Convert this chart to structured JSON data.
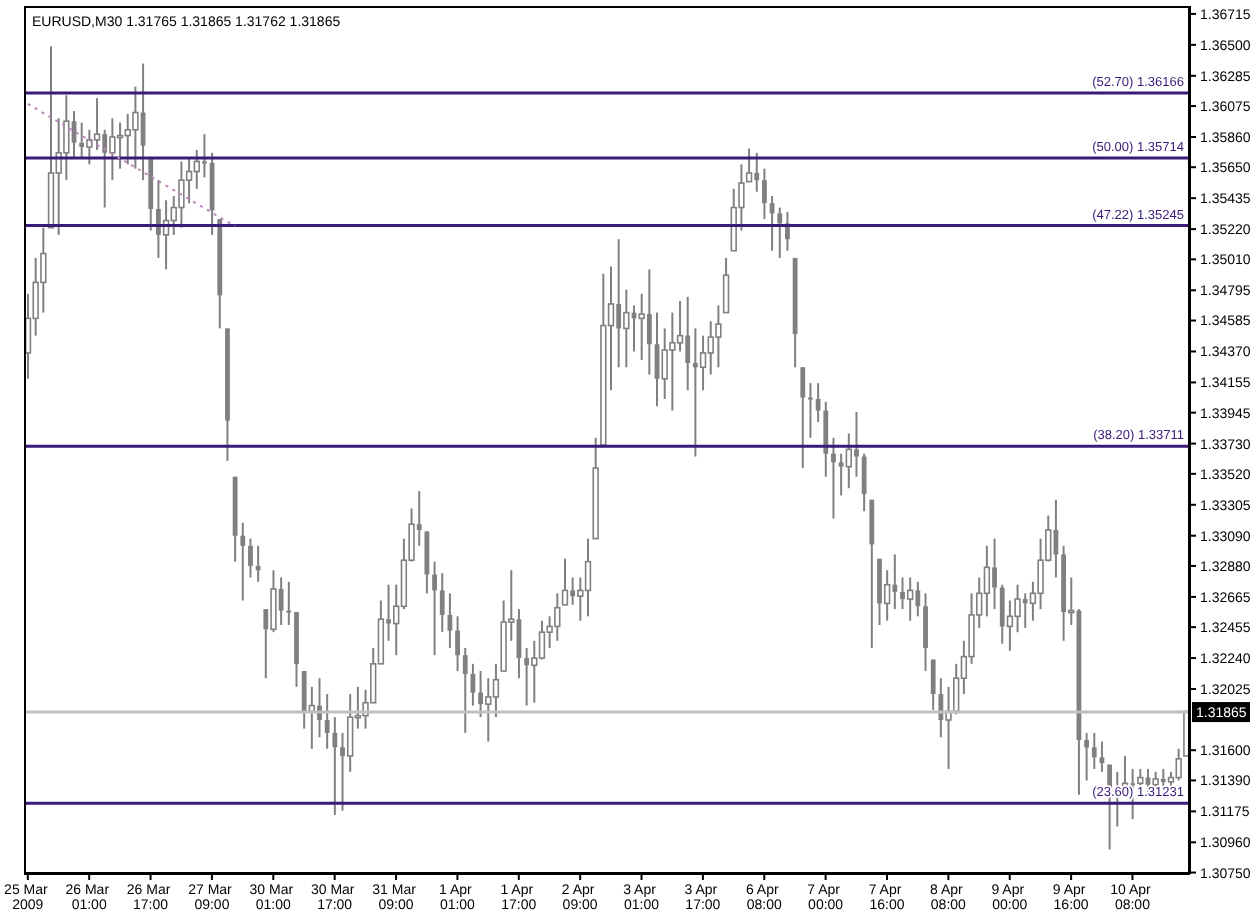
{
  "chart_data": {
    "type": "candlestick",
    "title": "EURUSD,M30 1.31765 1.31865 1.31762 1.31865",
    "categories": [
      "25 Mar 2009",
      null,
      null,
      null,
      null,
      null,
      null,
      null,
      "26 Mar 01:00",
      null,
      null,
      null,
      null,
      null,
      null,
      null,
      "26 Mar 17:00",
      null,
      null,
      null,
      null,
      null,
      null,
      null,
      "27 Mar 09:00",
      null,
      null,
      null,
      null,
      null,
      null,
      null,
      "30 Mar 01:00",
      null,
      null,
      null,
      null,
      null,
      null,
      null,
      "30 Mar 17:00",
      null,
      null,
      null,
      null,
      null,
      null,
      null,
      "31 Mar 09:00",
      null,
      null,
      null,
      null,
      null,
      null,
      null,
      "1 Apr 01:00",
      null,
      null,
      null,
      null,
      null,
      null,
      null,
      "1 Apr 17:00",
      null,
      null,
      null,
      null,
      null,
      null,
      null,
      "2 Apr 09:00",
      null,
      null,
      null,
      null,
      null,
      null,
      null,
      "3 Apr 01:00",
      null,
      null,
      null,
      null,
      null,
      null,
      null,
      "3 Apr 17:00",
      null,
      null,
      null,
      null,
      null,
      null,
      null,
      "6 Apr 08:00",
      null,
      null,
      null,
      null,
      null,
      null,
      null,
      "7 Apr 00:00",
      null,
      null,
      null,
      null,
      null,
      null,
      null,
      "7 Apr 16:00",
      null,
      null,
      null,
      null,
      null,
      null,
      null,
      "8 Apr 08:00",
      null,
      null,
      null,
      null,
      null,
      null,
      null,
      "9 Apr 00:00",
      null,
      null,
      null,
      null,
      null,
      null,
      null,
      "9 Apr 16:00",
      null,
      null,
      null,
      null,
      null,
      null,
      null,
      "10 Apr 08:00",
      null,
      null,
      null,
      null,
      null,
      null,
      null
    ],
    "color": "#808080",
    "ohlc": [
      [
        1.3436,
        1.3477,
        1.3418,
        1.346
      ],
      [
        1.346,
        1.3502,
        1.3448,
        1.3485
      ],
      [
        1.3485,
        1.3523,
        1.3464,
        1.3505
      ],
      [
        1.3523,
        1.3649,
        1.3523,
        1.3561
      ],
      [
        1.3561,
        1.3599,
        1.3518,
        1.3575
      ],
      [
        1.3575,
        1.3615,
        1.3556,
        1.3597
      ],
      [
        1.3597,
        1.3604,
        1.3572,
        1.3582
      ],
      [
        1.3582,
        1.3596,
        1.3572,
        1.3579
      ],
      [
        1.3579,
        1.3591,
        1.3567,
        1.3584
      ],
      [
        1.3584,
        1.3613,
        1.3577,
        1.3588
      ],
      [
        1.3588,
        1.3591,
        1.3537,
        1.3575
      ],
      [
        1.3575,
        1.3599,
        1.3556,
        1.3586
      ],
      [
        1.3586,
        1.3596,
        1.3564,
        1.3587
      ],
      [
        1.3587,
        1.3602,
        1.3567,
        1.3591
      ],
      [
        1.3591,
        1.3621,
        1.3564,
        1.3603
      ],
      [
        1.3603,
        1.3637,
        1.3556,
        1.358
      ],
      [
        1.3572,
        1.3572,
        1.3521,
        1.3536
      ],
      [
        1.3536,
        1.3556,
        1.3502,
        1.3518
      ],
      [
        1.3518,
        1.3542,
        1.3494,
        1.3528
      ],
      [
        1.3528,
        1.3545,
        1.3518,
        1.3537
      ],
      [
        1.3537,
        1.3569,
        1.3523,
        1.3556
      ],
      [
        1.3556,
        1.3572,
        1.354,
        1.3562
      ],
      [
        1.3562,
        1.3577,
        1.355,
        1.3569
      ],
      [
        1.3569,
        1.3588,
        1.3558,
        1.3568
      ],
      [
        1.3568,
        1.3575,
        1.3518,
        1.3535
      ],
      [
        1.3529,
        1.3529,
        1.3453,
        1.3476
      ],
      [
        1.3453,
        1.3453,
        1.3361,
        1.3389
      ],
      [
        1.335,
        1.335,
        1.3291,
        1.3309
      ],
      [
        1.3309,
        1.3318,
        1.3264,
        1.3302
      ],
      [
        1.3302,
        1.3307,
        1.328,
        1.3288
      ],
      [
        1.3288,
        1.3302,
        1.3277,
        1.3285
      ],
      [
        1.3258,
        1.3258,
        1.321,
        1.3244
      ],
      [
        1.3244,
        1.3285,
        1.3242,
        1.3272
      ],
      [
        1.3272,
        1.328,
        1.3247,
        1.3257
      ],
      [
        1.3257,
        1.3277,
        1.3247,
        1.3257
      ],
      [
        1.3256,
        1.3256,
        1.3204,
        1.322
      ],
      [
        1.3215,
        1.3215,
        1.3175,
        1.3187
      ],
      [
        1.3187,
        1.3204,
        1.3161,
        1.3191
      ],
      [
        1.3191,
        1.321,
        1.3169,
        1.3181
      ],
      [
        1.3181,
        1.3199,
        1.3161,
        1.3172
      ],
      [
        1.3172,
        1.3183,
        1.3115,
        1.3162
      ],
      [
        1.3162,
        1.3172,
        1.3118,
        1.3156
      ],
      [
        1.3156,
        1.3199,
        1.3145,
        1.3183
      ],
      [
        1.3183,
        1.3204,
        1.3175,
        1.3184
      ],
      [
        1.3184,
        1.3202,
        1.3175,
        1.3193
      ],
      [
        1.3193,
        1.3231,
        1.3193,
        1.322
      ],
      [
        1.322,
        1.3264,
        1.322,
        1.3251
      ],
      [
        1.3251,
        1.3275,
        1.3236,
        1.3248
      ],
      [
        1.3248,
        1.3275,
        1.3226,
        1.326
      ],
      [
        1.326,
        1.3307,
        1.3258,
        1.3292
      ],
      [
        1.3292,
        1.3328,
        1.3291,
        1.3317
      ],
      [
        1.3317,
        1.334,
        1.3302,
        1.3313
      ],
      [
        1.3312,
        1.3312,
        1.3269,
        1.3282
      ],
      [
        1.3282,
        1.3291,
        1.3226,
        1.3271
      ],
      [
        1.3271,
        1.3283,
        1.3242,
        1.3254
      ],
      [
        1.3254,
        1.3269,
        1.3231,
        1.3243
      ],
      [
        1.3243,
        1.3253,
        1.3215,
        1.3226
      ],
      [
        1.3226,
        1.3231,
        1.3172,
        1.3213
      ],
      [
        1.3213,
        1.322,
        1.3191,
        1.32
      ],
      [
        1.32,
        1.3215,
        1.3183,
        1.3192
      ],
      [
        1.3192,
        1.321,
        1.3166,
        1.3197
      ],
      [
        1.3197,
        1.322,
        1.3183,
        1.3209
      ],
      [
        1.3215,
        1.3264,
        1.3215,
        1.3249
      ],
      [
        1.3249,
        1.3285,
        1.3236,
        1.3251
      ],
      [
        1.3251,
        1.3258,
        1.321,
        1.3224
      ],
      [
        1.3224,
        1.3231,
        1.3191,
        1.3219
      ],
      [
        1.3219,
        1.3236,
        1.3193,
        1.3224
      ],
      [
        1.3224,
        1.325,
        1.3223,
        1.3242
      ],
      [
        1.3242,
        1.3253,
        1.3231,
        1.3246
      ],
      [
        1.3246,
        1.3269,
        1.3236,
        1.3259
      ],
      [
        1.3261,
        1.3293,
        1.3261,
        1.3271
      ],
      [
        1.3271,
        1.328,
        1.3261,
        1.3267
      ],
      [
        1.3267,
        1.328,
        1.325,
        1.3271
      ],
      [
        1.3271,
        1.3307,
        1.3253,
        1.3291
      ],
      [
        1.3307,
        1.3377,
        1.3307,
        1.3356
      ],
      [
        1.3372,
        1.3491,
        1.3372,
        1.3455
      ],
      [
        1.3455,
        1.3496,
        1.341,
        1.347
      ],
      [
        1.347,
        1.3515,
        1.3426,
        1.3453
      ],
      [
        1.3453,
        1.348,
        1.3426,
        1.3464
      ],
      [
        1.3464,
        1.3469,
        1.3437,
        1.346
      ],
      [
        1.346,
        1.3477,
        1.3431,
        1.3463
      ],
      [
        1.3463,
        1.3494,
        1.3421,
        1.3442
      ],
      [
        1.3442,
        1.3464,
        1.3399,
        1.3418
      ],
      [
        1.3418,
        1.3453,
        1.3404,
        1.3438
      ],
      [
        1.3438,
        1.3464,
        1.3396,
        1.3443
      ],
      [
        1.3443,
        1.3472,
        1.3437,
        1.3448
      ],
      [
        1.3448,
        1.3475,
        1.341,
        1.3429
      ],
      [
        1.3429,
        1.3453,
        1.3364,
        1.3426
      ],
      [
        1.3426,
        1.3448,
        1.341,
        1.3436
      ],
      [
        1.3436,
        1.3458,
        1.3421,
        1.3447
      ],
      [
        1.3447,
        1.3469,
        1.3426,
        1.3456
      ],
      [
        1.3464,
        1.3502,
        1.3464,
        1.349
      ],
      [
        1.3507,
        1.355,
        1.3507,
        1.3537
      ],
      [
        1.3537,
        1.3567,
        1.3521,
        1.3554
      ],
      [
        1.3555,
        1.3578,
        1.3555,
        1.3561
      ],
      [
        1.3561,
        1.3575,
        1.3548,
        1.3556
      ],
      [
        1.3556,
        1.3564,
        1.3529,
        1.354
      ],
      [
        1.354,
        1.3545,
        1.3507,
        1.3533
      ],
      [
        1.3533,
        1.3537,
        1.3502,
        1.3526
      ],
      [
        1.3526,
        1.3534,
        1.3507,
        1.3515
      ],
      [
        1.3502,
        1.3502,
        1.3426,
        1.3449
      ],
      [
        1.3426,
        1.3426,
        1.3356,
        1.3405
      ],
      [
        1.3405,
        1.3415,
        1.3377,
        1.3404
      ],
      [
        1.3404,
        1.3415,
        1.3388,
        1.3396
      ],
      [
        1.3396,
        1.3402,
        1.335,
        1.3366
      ],
      [
        1.3366,
        1.3377,
        1.3321,
        1.336
      ],
      [
        1.336,
        1.3366,
        1.3337,
        1.3357
      ],
      [
        1.3357,
        1.338,
        1.3342,
        1.3369
      ],
      [
        1.3369,
        1.3395,
        1.335,
        1.3364
      ],
      [
        1.3364,
        1.3366,
        1.3326,
        1.3338
      ],
      [
        1.3334,
        1.3334,
        1.3231,
        1.3303
      ],
      [
        1.3293,
        1.3293,
        1.3247,
        1.3262
      ],
      [
        1.3262,
        1.3285,
        1.325,
        1.3275
      ],
      [
        1.3275,
        1.3296,
        1.3258,
        1.327
      ],
      [
        1.327,
        1.328,
        1.3258,
        1.3265
      ],
      [
        1.3265,
        1.328,
        1.325,
        1.3271
      ],
      [
        1.3271,
        1.3277,
        1.3253,
        1.326
      ],
      [
        1.326,
        1.3269,
        1.3215,
        1.3231
      ],
      [
        1.3223,
        1.3223,
        1.3188,
        1.3199
      ],
      [
        1.3199,
        1.321,
        1.3169,
        1.3181
      ],
      [
        1.3181,
        1.3204,
        1.3147,
        1.3187
      ],
      [
        1.3187,
        1.322,
        1.3185,
        1.321
      ],
      [
        1.321,
        1.3236,
        1.3199,
        1.3225
      ],
      [
        1.3225,
        1.3269,
        1.322,
        1.3254
      ],
      [
        1.3254,
        1.328,
        1.3245,
        1.3269
      ],
      [
        1.3269,
        1.3302,
        1.3253,
        1.3287
      ],
      [
        1.3287,
        1.3307,
        1.3258,
        1.3273
      ],
      [
        1.3273,
        1.3275,
        1.3234,
        1.3246
      ],
      [
        1.3246,
        1.3264,
        1.3229,
        1.3253
      ],
      [
        1.3253,
        1.3275,
        1.3242,
        1.3265
      ],
      [
        1.3265,
        1.3269,
        1.3245,
        1.3262
      ],
      [
        1.3262,
        1.3277,
        1.325,
        1.3269
      ],
      [
        1.3269,
        1.3307,
        1.3258,
        1.3292
      ],
      [
        1.3292,
        1.3323,
        1.3291,
        1.3313
      ],
      [
        1.3313,
        1.3334,
        1.328,
        1.3296
      ],
      [
        1.3296,
        1.3302,
        1.3236,
        1.3256
      ],
      [
        1.3256,
        1.328,
        1.3247,
        1.3257
      ],
      [
        1.3257,
        1.3258,
        1.3129,
        1.3167
      ],
      [
        1.3167,
        1.3172,
        1.3139,
        1.3162
      ],
      [
        1.3162,
        1.3172,
        1.3147,
        1.3155
      ],
      [
        1.3155,
        1.3166,
        1.3145,
        1.3151
      ],
      [
        1.315,
        1.315,
        1.3091,
        1.3132
      ],
      [
        1.3132,
        1.3145,
        1.3107,
        1.3133
      ],
      [
        1.3133,
        1.3156,
        1.3129,
        1.3137
      ],
      [
        1.3137,
        1.3147,
        1.3112,
        1.3137
      ],
      [
        1.3137,
        1.3147,
        1.3129,
        1.3141
      ],
      [
        1.3141,
        1.3147,
        1.3131,
        1.3136
      ],
      [
        1.3136,
        1.3145,
        1.3131,
        1.314
      ],
      [
        1.314,
        1.3147,
        1.3134,
        1.3138
      ],
      [
        1.3138,
        1.3145,
        1.3134,
        1.3141
      ],
      [
        1.3141,
        1.3161,
        1.3139,
        1.3154
      ],
      [
        1.3156,
        1.3187,
        1.3156,
        1.3187
      ]
    ],
    "series": [
      {
        "type": "line",
        "color": "#b88ab8",
        "line_style": "dotted",
        "values": [
          1.3609,
          null,
          null,
          null,
          null,
          null,
          null,
          null,
          null,
          null,
          null,
          null,
          null,
          null,
          null,
          null,
          null,
          null,
          null,
          null,
          null,
          null,
          null,
          null,
          null,
          null,
          null,
          1.3524,
          null,
          null,
          null,
          null,
          null,
          null,
          null,
          null,
          null,
          null,
          null,
          null,
          null,
          null,
          null,
          null,
          null,
          null,
          null,
          null,
          null,
          null,
          null,
          null,
          null,
          null,
          null,
          null,
          null,
          null,
          null,
          null,
          null,
          null,
          null,
          null,
          null,
          null,
          null,
          null,
          null,
          null,
          null,
          null,
          null,
          null,
          null,
          null,
          null,
          null,
          null,
          null,
          null,
          null,
          null,
          null,
          null,
          null,
          null,
          null,
          null,
          null,
          null,
          null,
          null,
          null,
          null,
          null,
          null,
          null,
          null,
          null,
          null,
          null,
          null,
          null,
          null,
          null,
          null,
          null,
          null,
          null,
          null,
          null,
          null,
          null,
          null,
          null,
          null,
          null,
          null,
          null,
          null,
          null,
          null,
          null,
          null,
          null,
          null,
          null,
          null,
          null,
          null,
          null,
          null,
          null,
          null,
          null,
          null,
          null,
          null,
          null,
          null,
          null,
          null,
          null,
          null,
          null,
          null,
          null,
          null,
          null,
          null,
          null
        ]
      }
    ],
    "ylim": [
      1.3074,
      1.3677
    ],
    "yticks": [
      1.36715,
      {
        "value": 1.365,
        "label": "1.36500"
      },
      1.36285,
      1.36075,
      {
        "value": 1.3586,
        "label": "1.35860"
      },
      {
        "value": 1.3565,
        "label": "1.35650"
      },
      1.35435,
      {
        "value": 1.3522,
        "label": "1.35220"
      },
      {
        "value": 1.3501,
        "label": "1.35010"
      },
      1.34795,
      1.34585,
      {
        "value": 1.3437,
        "label": "1.34370"
      },
      1.34155,
      1.33945,
      {
        "value": 1.3373,
        "label": "1.33730"
      },
      {
        "value": 1.3352,
        "label": "1.33520"
      },
      1.33305,
      {
        "value": 1.3309,
        "label": "1.33090"
      },
      {
        "value": 1.3288,
        "label": "1.32880"
      },
      1.32665,
      1.32455,
      {
        "value": 1.3224,
        "label": "1.32240"
      },
      1.32025,
      {
        "value": 1.316,
        "label": "1.31600"
      },
      {
        "value": 1.3139,
        "label": "1.31390"
      },
      1.31175,
      {
        "value": 1.3096,
        "label": "1.30960"
      },
      {
        "value": 1.3075,
        "label": "1.30750"
      }
    ],
    "ref_lines": [
      {
        "axis": "y",
        "value": 1.36166,
        "label": "(52.70) 1.36166",
        "color": "#3b1a7a"
      },
      {
        "axis": "y",
        "value": 1.35714,
        "label": "(50.00) 1.35714",
        "color": "#3b1a7a"
      },
      {
        "axis": "y",
        "value": 1.35245,
        "label": "(47.22) 1.35245",
        "color": "#3b1a7a"
      },
      {
        "axis": "y",
        "value": 1.33711,
        "label": "(38.20) 1.33711",
        "color": "#3b1a7a"
      },
      {
        "axis": "y",
        "value": 1.31231,
        "label": "(23.60) 1.31231",
        "color": "#3b1a7a"
      },
      {
        "axis": "y",
        "value": 1.31865,
        "color": "#c0c0c0"
      }
    ],
    "annotations": [
      {
        "text": "1.31865",
        "y": 1.31865
      }
    ]
  }
}
